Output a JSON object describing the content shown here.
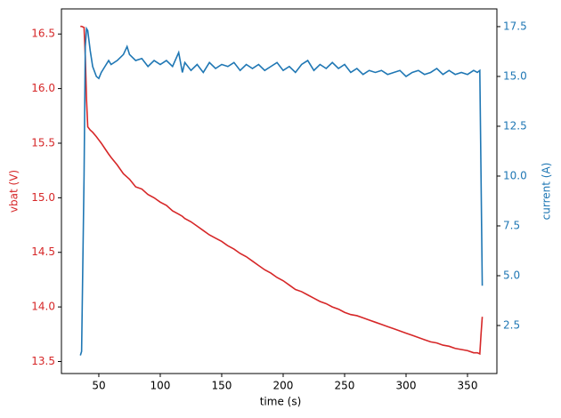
{
  "chart_data": {
    "type": "line",
    "xlabel": "time (s)",
    "ylabel": "vbat (V)",
    "y2label": "current (A)",
    "x": [
      35,
      36,
      38,
      39,
      40,
      41,
      43,
      45,
      48,
      50,
      52,
      55,
      58,
      60,
      65,
      70,
      73,
      75,
      80,
      85,
      90,
      95,
      100,
      105,
      110,
      115,
      118,
      120,
      125,
      130,
      135,
      140,
      145,
      150,
      155,
      160,
      165,
      170,
      175,
      180,
      185,
      190,
      195,
      200,
      205,
      210,
      215,
      220,
      225,
      230,
      235,
      240,
      245,
      250,
      255,
      260,
      265,
      270,
      275,
      280,
      285,
      290,
      295,
      300,
      305,
      310,
      315,
      320,
      325,
      330,
      335,
      340,
      345,
      350,
      355,
      358,
      360,
      361,
      362
    ],
    "series": [
      {
        "name": "vbat",
        "color": "#d62728",
        "axis": "y",
        "values": [
          16.57,
          16.57,
          16.56,
          16.3,
          15.9,
          15.65,
          15.62,
          15.6,
          15.56,
          15.53,
          15.5,
          15.45,
          15.4,
          15.37,
          15.3,
          15.22,
          15.19,
          15.17,
          15.1,
          15.08,
          15.03,
          15.0,
          14.96,
          14.93,
          14.88,
          14.85,
          14.83,
          14.81,
          14.78,
          14.74,
          14.7,
          14.66,
          14.63,
          14.6,
          14.56,
          14.53,
          14.49,
          14.46,
          14.42,
          14.38,
          14.34,
          14.31,
          14.27,
          14.24,
          14.2,
          14.16,
          14.14,
          14.11,
          14.08,
          14.05,
          14.03,
          14.0,
          13.98,
          13.95,
          13.93,
          13.92,
          13.9,
          13.88,
          13.86,
          13.84,
          13.82,
          13.8,
          13.78,
          13.76,
          13.74,
          13.72,
          13.7,
          13.68,
          13.67,
          13.65,
          13.64,
          13.62,
          13.61,
          13.6,
          13.58,
          13.58,
          13.57,
          13.75,
          13.91
        ]
      },
      {
        "name": "current",
        "color": "#1f77b4",
        "axis": "y2",
        "values": [
          1.0,
          1.2,
          10,
          16.5,
          17.4,
          17.3,
          16.3,
          15.5,
          15.0,
          14.9,
          15.2,
          15.5,
          15.8,
          15.6,
          15.8,
          16.1,
          16.5,
          16.1,
          15.8,
          15.9,
          15.5,
          15.8,
          15.6,
          15.8,
          15.5,
          16.2,
          15.2,
          15.7,
          15.3,
          15.6,
          15.2,
          15.7,
          15.4,
          15.6,
          15.5,
          15.7,
          15.3,
          15.6,
          15.4,
          15.6,
          15.3,
          15.5,
          15.7,
          15.3,
          15.5,
          15.2,
          15.6,
          15.8,
          15.3,
          15.6,
          15.4,
          15.7,
          15.4,
          15.6,
          15.2,
          15.4,
          15.1,
          15.3,
          15.2,
          15.3,
          15.1,
          15.2,
          15.3,
          15.0,
          15.2,
          15.3,
          15.1,
          15.2,
          15.4,
          15.1,
          15.3,
          15.1,
          15.2,
          15.1,
          15.3,
          15.2,
          15.3,
          10,
          4.5
        ]
      }
    ],
    "xlim": [
      19.6,
      373.9
    ],
    "xticks": [
      50,
      100,
      150,
      200,
      250,
      300,
      350
    ],
    "ylim": [
      13.39,
      16.73
    ],
    "yticks": [
      13.5,
      {
        "value": 14,
        "label": "14.0"
      },
      14.5,
      {
        "value": 15,
        "label": "15.0"
      },
      15.5,
      {
        "value": 16,
        "label": "16.0"
      },
      16.5
    ],
    "y2lim": [
      0.09,
      18.39
    ],
    "y2ticks": [
      2.5,
      {
        "value": 5,
        "label": "5.0"
      },
      7.5,
      {
        "value": 10,
        "label": "10.0"
      },
      12.5,
      {
        "value": 15,
        "label": "15.0"
      },
      17.5
    ]
  }
}
